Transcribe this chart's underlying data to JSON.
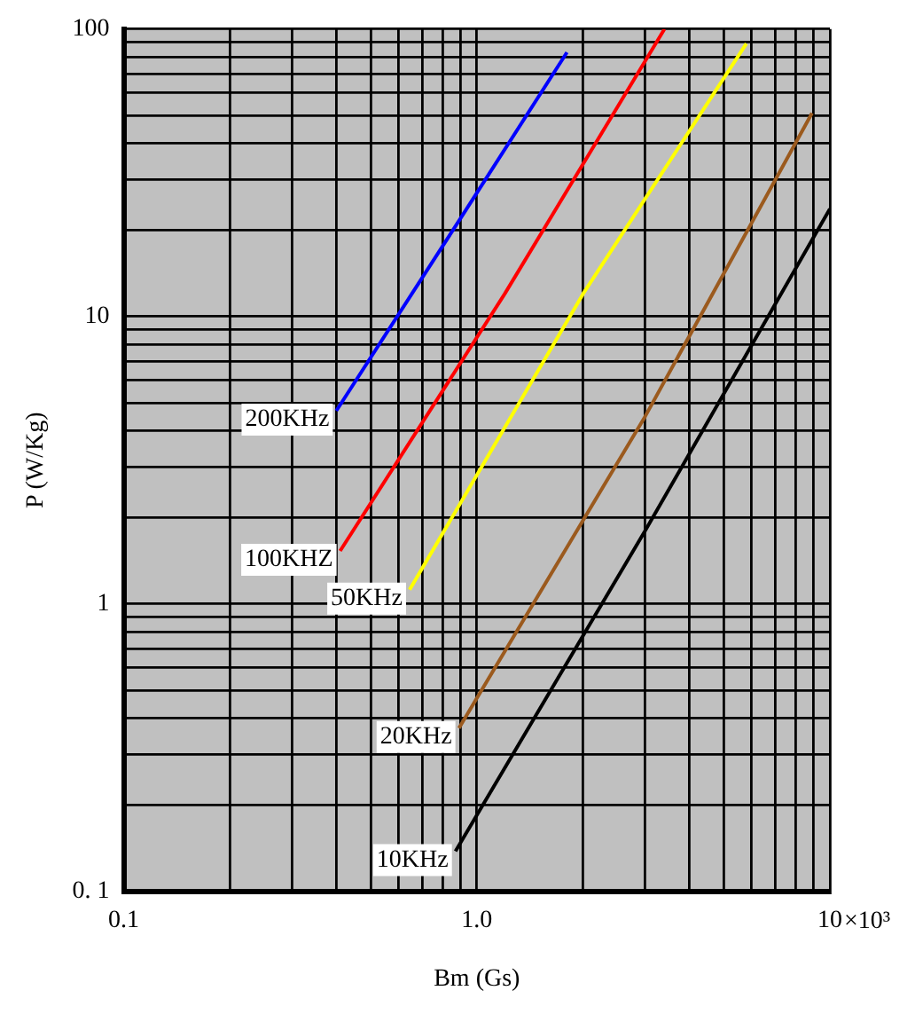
{
  "chart_data": {
    "type": "line",
    "xlabel": "Bm (Gs)",
    "ylabel": "P (W/Kg)",
    "log": "xy",
    "grid": true,
    "legend": false,
    "marker": "none",
    "line_style": "solid",
    "xlim": [
      0.1,
      10
    ],
    "ylim": [
      0.1,
      100
    ],
    "xticks": [
      {
        "value": 0.1,
        "label": "0.1"
      },
      {
        "value": 0.2,
        "label": null
      },
      {
        "value": 0.3,
        "label": null
      },
      {
        "value": 0.4,
        "label": null
      },
      {
        "value": 0.5,
        "label": null
      },
      {
        "value": 0.6,
        "label": null
      },
      {
        "value": 0.7,
        "label": null
      },
      {
        "value": 0.8,
        "label": null
      },
      {
        "value": 0.9,
        "label": null
      },
      {
        "value": 1,
        "label": "1.0"
      },
      {
        "value": 2,
        "label": null
      },
      {
        "value": 3,
        "label": null
      },
      {
        "value": 4,
        "label": null
      },
      {
        "value": 5,
        "label": null
      },
      {
        "value": 6,
        "label": null
      },
      {
        "value": 7,
        "label": null
      },
      {
        "value": 8,
        "label": null
      },
      {
        "value": 9,
        "label": null
      },
      10
    ],
    "annotations": [
      "×10³"
    ],
    "yticks": [
      {
        "value": 0.1,
        "label": "0. 1"
      },
      {
        "value": 0.2,
        "label": null
      },
      {
        "value": 0.3,
        "label": null
      },
      {
        "value": 0.4,
        "label": null
      },
      {
        "value": 0.5,
        "label": null
      },
      {
        "value": 0.6,
        "label": null
      },
      {
        "value": 0.7,
        "label": null
      },
      {
        "value": 0.8,
        "label": null
      },
      {
        "value": 0.9,
        "label": null
      },
      1,
      {
        "value": 2,
        "label": null
      },
      {
        "value": 3,
        "label": null
      },
      {
        "value": 4,
        "label": null
      },
      {
        "value": 5,
        "label": null
      },
      {
        "value": 6,
        "label": null
      },
      {
        "value": 7,
        "label": null
      },
      {
        "value": 8,
        "label": null
      },
      {
        "value": 9,
        "label": null
      },
      10,
      {
        "value": 20,
        "label": null
      },
      {
        "value": 30,
        "label": null
      },
      {
        "value": 40,
        "label": null
      },
      {
        "value": 50,
        "label": null
      },
      {
        "value": 60,
        "label": null
      },
      {
        "value": 70,
        "label": null
      },
      {
        "value": 80,
        "label": null
      },
      {
        "value": 90,
        "label": null
      },
      100
    ],
    "series": [
      {
        "name": "200KHz",
        "color": "#0000ff",
        "x": [
          0.4,
          0.9,
          1.8
        ],
        "values": [
          4.7,
          22,
          83
        ]
      },
      {
        "name": "100KHZ",
        "color": "#ff0000",
        "x": [
          0.41,
          1.2,
          3.4
        ],
        "values": [
          1.53,
          12,
          100
        ]
      },
      {
        "name": "50KHz",
        "color": "#ffff00",
        "x": [
          0.645,
          2,
          5.8
        ],
        "values": [
          1.12,
          12,
          89
        ]
      },
      {
        "name": "20KHz",
        "color": "#9b5a1e",
        "x": [
          0.89,
          3,
          8.9
        ],
        "values": [
          0.37,
          4.5,
          51
        ]
      },
      {
        "name": "10KHz",
        "color": "#000000",
        "x": [
          0.87,
          3,
          10
        ],
        "values": [
          0.138,
          1.8,
          23.7
        ]
      }
    ]
  }
}
